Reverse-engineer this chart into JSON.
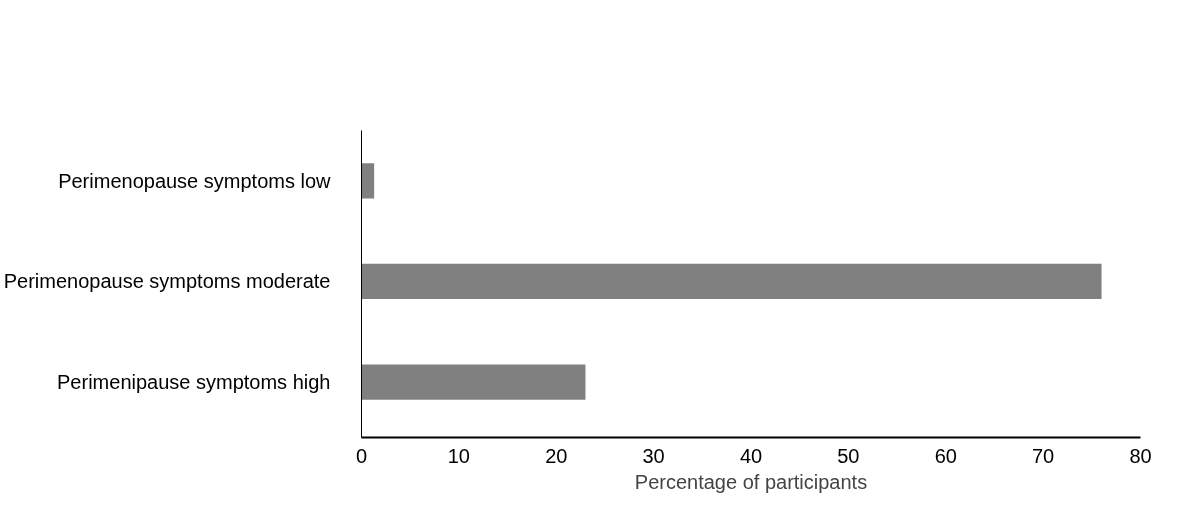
{
  "chart_data": {
    "type": "bar",
    "orientation": "horizontal",
    "xlabel": "Percentage of participants",
    "categories": [
      "Perimenopause symptoms low",
      "Perimenopause symptoms moderate",
      "Perimenipause symptoms high"
    ],
    "values": [
      1.3,
      76,
      23
    ],
    "color": "#808080",
    "xlim": [
      0,
      80
    ],
    "xticks": [
      0,
      10,
      20,
      30,
      40,
      50,
      60,
      70,
      80
    ],
    "grid": false
  }
}
